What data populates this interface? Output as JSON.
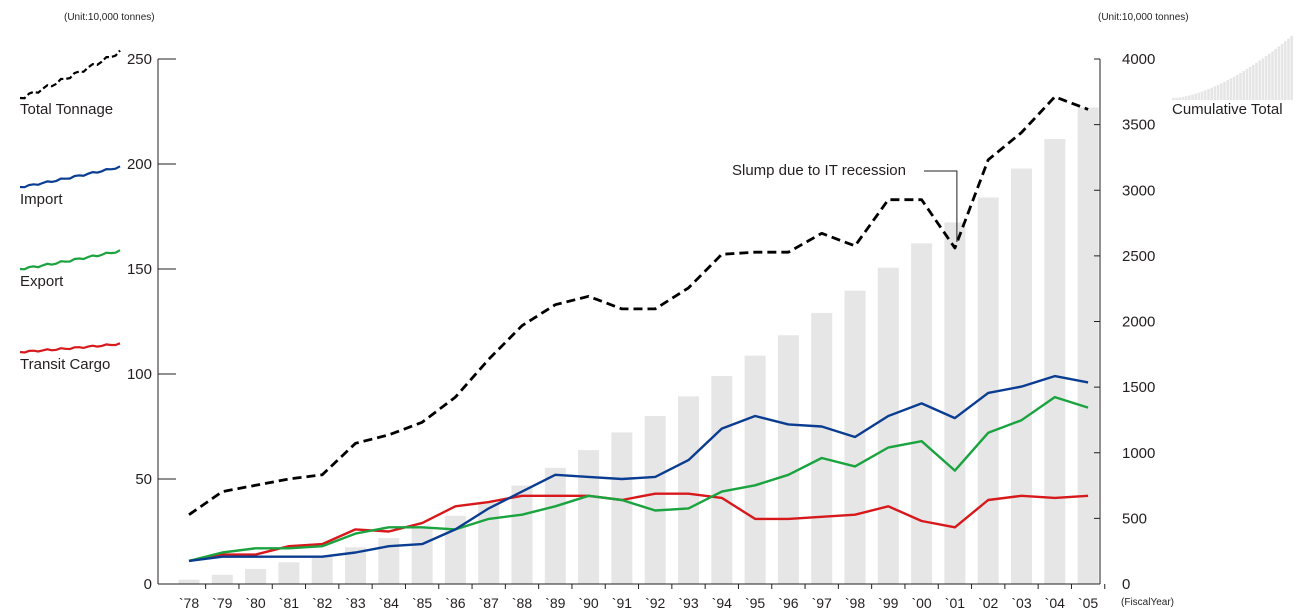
{
  "chart_data": {
    "type": "bar+line",
    "unit_left": "(Unit:10,000 tonnes)",
    "unit_right": "(Unit:10,000 tonnes)",
    "x_axis_note": "(FiscalYear)",
    "categories": [
      "`78",
      "`79",
      "`80",
      "`81",
      "`82",
      "`83",
      "`84",
      "`85",
      "`86",
      "`87",
      "`88",
      "`89",
      "`90",
      "`91",
      "`92",
      "`93",
      "`94",
      "`95",
      "`96",
      "`97",
      "`98",
      "`99",
      "`00",
      "`01",
      "`02",
      "`03",
      "`04",
      "`05"
    ],
    "left_axis": {
      "ylim": [
        0,
        250
      ],
      "ticks": [
        0,
        50,
        100,
        150,
        200,
        250
      ]
    },
    "right_axis": {
      "ylim": [
        0,
        4000
      ],
      "ticks": [
        0,
        500,
        1000,
        1500,
        2000,
        2500,
        3000,
        3500,
        4000
      ]
    },
    "bar_series": {
      "name": "Cumulative Total",
      "axis": "right",
      "color": "#e6e6e6",
      "values": [
        33,
        70,
        115,
        165,
        215,
        280,
        350,
        430,
        520,
        620,
        750,
        885,
        1020,
        1155,
        1280,
        1430,
        1585,
        1740,
        1895,
        2065,
        2235,
        2410,
        2595,
        2755,
        2945,
        3165,
        3390,
        3630
      ]
    },
    "line_series": [
      {
        "name": "Total Tonnage",
        "axis": "left",
        "color": "#000000",
        "dashed": true,
        "values": [
          33,
          44,
          47,
          50,
          52,
          67,
          71,
          77,
          89,
          107,
          123,
          133,
          137,
          131,
          131,
          141,
          157,
          158,
          158,
          167,
          161,
          183,
          183,
          160,
          202,
          215,
          232,
          226
        ]
      },
      {
        "name": "Import",
        "axis": "left",
        "color": "#0a3d91",
        "dashed": false,
        "values": [
          11,
          13,
          13,
          13,
          13,
          15,
          18,
          19,
          26,
          36,
          44,
          52,
          51,
          50,
          51,
          59,
          74,
          80,
          76,
          75,
          70,
          80,
          86,
          79,
          91,
          94,
          99,
          96
        ]
      },
      {
        "name": "Export",
        "axis": "left",
        "color": "#1aa33f",
        "dashed": false,
        "values": [
          11,
          15,
          17,
          17,
          18,
          24,
          27,
          27,
          26,
          31,
          33,
          37,
          42,
          40,
          35,
          36,
          44,
          47,
          52,
          60,
          56,
          65,
          68,
          54,
          72,
          78,
          89,
          84
        ]
      },
      {
        "name": "Transit Cargo",
        "axis": "left",
        "color": "#d7191c",
        "dashed": false,
        "values": [
          11,
          14,
          14,
          18,
          19,
          26,
          25,
          29,
          37,
          39,
          42,
          42,
          42,
          40,
          43,
          43,
          41,
          31,
          31,
          32,
          33,
          37,
          30,
          27,
          40,
          42,
          41,
          42
        ]
      }
    ],
    "annotation": {
      "text": "Slump due to IT recession",
      "category": "`01",
      "series": "Total Tonnage"
    }
  }
}
